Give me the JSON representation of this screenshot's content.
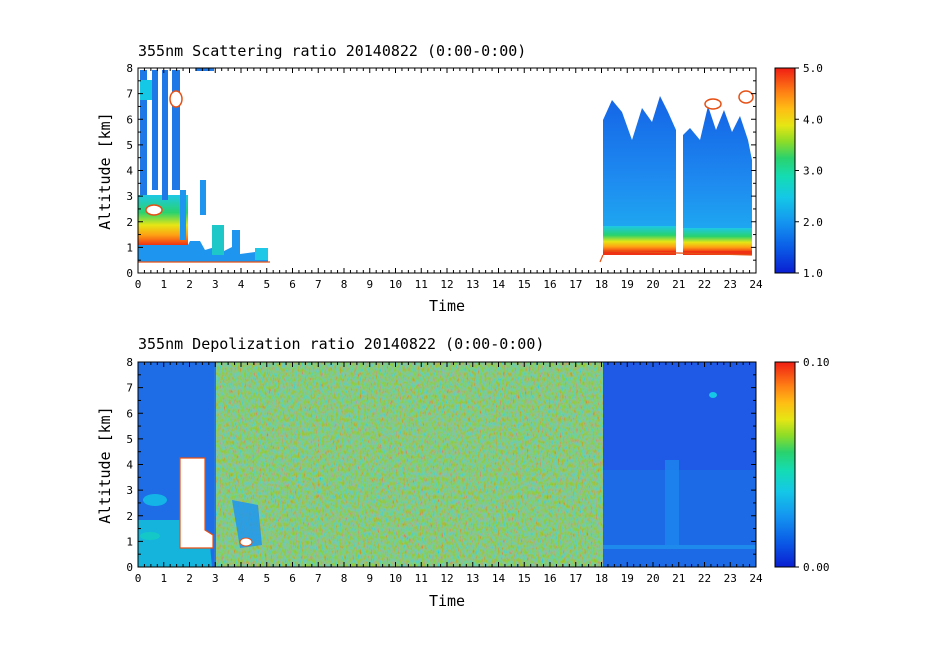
{
  "chart_data": [
    {
      "type": "heatmap",
      "title": "355nm Scattering ratio  20140822 (0:00-0:00)",
      "xlabel": "Time",
      "ylabel": "Altitude [km]",
      "xlim": [
        0,
        24
      ],
      "ylim": [
        0,
        8
      ],
      "xticks": [
        "0",
        "1",
        "2",
        "3",
        "4",
        "5",
        "6",
        "7",
        "8",
        "9",
        "10",
        "11",
        "12",
        "13",
        "14",
        "15",
        "16",
        "17",
        "18",
        "19",
        "20",
        "21",
        "22",
        "23",
        "24"
      ],
      "yticks": [
        "0",
        "1",
        "2",
        "3",
        "4",
        "5",
        "6",
        "7",
        "8"
      ],
      "colorbar": {
        "min": 1.0,
        "max": 5.0,
        "ticks": [
          "1.0",
          "2.0",
          "3.0",
          "4.0",
          "5.0"
        ]
      },
      "data_segments": [
        {
          "t_start": 0.0,
          "t_end": 5.0,
          "description_value": "enhanced ratio (3-5) below ~1.5 km, broken clouds up to 8 km"
        },
        {
          "t_start": 18.0,
          "t_end": 20.7,
          "description_value": "ratio ~4-5 at 0.6-1 km, ~1.5-2 aloft to ~6 km"
        },
        {
          "t_start": 21.2,
          "t_end": 24.0,
          "description_value": "ratio ~4-5 at 0.8-1 km, ~1.5-2 aloft to ~5.5 km, cloud ~6.7 km"
        }
      ]
    },
    {
      "type": "heatmap",
      "title": "355nm Depolization ratio  20140822 (0:00-0:00)",
      "xlabel": "Time",
      "ylabel": "Altitude [km]",
      "xlim": [
        0,
        24
      ],
      "ylim": [
        0,
        8
      ],
      "xticks": [
        "0",
        "1",
        "2",
        "3",
        "4",
        "5",
        "6",
        "7",
        "8",
        "9",
        "10",
        "11",
        "12",
        "13",
        "14",
        "15",
        "16",
        "17",
        "18",
        "19",
        "20",
        "21",
        "22",
        "23",
        "24"
      ],
      "yticks": [
        "0",
        "1",
        "2",
        "3",
        "4",
        "5",
        "6",
        "7",
        "8"
      ],
      "colorbar": {
        "min": 0.0,
        "max": 0.1,
        "ticks": [
          "0.00",
          "0.10"
        ]
      },
      "data_segments": [
        {
          "t_start": 0.0,
          "t_end": 3.0,
          "description_value": "low depolarization (~0.01), blank region 1.7-3 h at 0.5-4.3 km"
        },
        {
          "t_start": 3.0,
          "t_end": 18.0,
          "description_value": "noisy daytime 0.03-0.10"
        },
        {
          "t_start": 18.0,
          "t_end": 24.0,
          "description_value": "low depolarization (~0.01)"
        }
      ]
    }
  ]
}
